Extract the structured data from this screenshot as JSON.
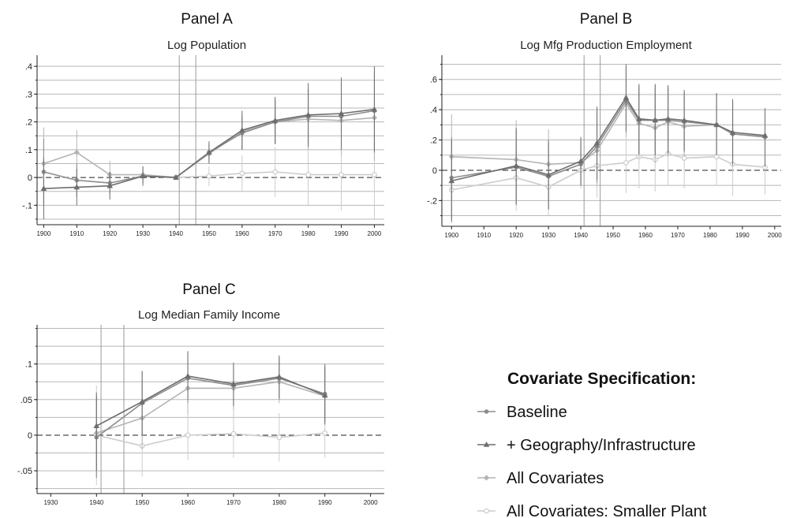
{
  "legend": {
    "title": "Covariate Specification:",
    "items": [
      {
        "label": "Baseline",
        "color": "#8c8c8c",
        "marker": "circle"
      },
      {
        "label": "+ Geography/Infrastructure",
        "color": "#6e6e6e",
        "marker": "triangle"
      },
      {
        "label": "All Covariates",
        "color": "#b4b4b4",
        "marker": "diamond"
      },
      {
        "label": "All Covariates: Smaller Plant",
        "color": "#cccccc",
        "marker": "plus"
      }
    ]
  },
  "chart_data": [
    {
      "type": "line",
      "title": "Panel A",
      "subtitle": "Log Population",
      "xlim": [
        1898,
        2003
      ],
      "ylim": [
        -0.17,
        0.44
      ],
      "xticks": [
        1900,
        1910,
        1920,
        1930,
        1940,
        1950,
        1960,
        1970,
        1980,
        1990,
        2000
      ],
      "yticks": [
        -0.1,
        0,
        0.1,
        0.2,
        0.3,
        0.4
      ],
      "ytick_labels": [
        "-.1",
        "0",
        ".1",
        ".2",
        ".3",
        ".4"
      ],
      "vlines": [
        1941,
        1946
      ],
      "series": [
        {
          "name": "Baseline",
          "points": [
            {
              "x": 1900,
              "y": 0.02,
              "lo": -0.1,
              "hi": 0.14
            },
            {
              "x": 1910,
              "y": -0.01,
              "lo": -0.07,
              "hi": 0.05
            },
            {
              "x": 1920,
              "y": -0.02,
              "lo": -0.06,
              "hi": 0.02
            },
            {
              "x": 1930,
              "y": 0.005,
              "lo": -0.02,
              "hi": 0.03
            },
            {
              "x": 1940,
              "y": 0,
              "lo": 0,
              "hi": 0
            },
            {
              "x": 1950,
              "y": 0.09,
              "lo": 0.06,
              "hi": 0.12
            },
            {
              "x": 1960,
              "y": 0.16,
              "lo": 0.1,
              "hi": 0.22
            },
            {
              "x": 1970,
              "y": 0.2,
              "lo": 0.12,
              "hi": 0.28
            },
            {
              "x": 1980,
              "y": 0.22,
              "lo": 0.12,
              "hi": 0.32
            },
            {
              "x": 1990,
              "y": 0.22,
              "lo": 0.11,
              "hi": 0.34
            },
            {
              "x": 2000,
              "y": 0.24,
              "lo": 0.1,
              "hi": 0.38
            }
          ]
        },
        {
          "name": "+ Geography/Infrastructure",
          "points": [
            {
              "x": 1900,
              "y": -0.04,
              "lo": -0.15,
              "hi": 0.07
            },
            {
              "x": 1910,
              "y": -0.035,
              "lo": -0.1,
              "hi": 0.03
            },
            {
              "x": 1920,
              "y": -0.03,
              "lo": -0.08,
              "hi": 0.02
            },
            {
              "x": 1930,
              "y": 0.005,
              "lo": -0.03,
              "hi": 0.04
            },
            {
              "x": 1940,
              "y": 0,
              "lo": 0,
              "hi": 0
            },
            {
              "x": 1950,
              "y": 0.09,
              "lo": 0.05,
              "hi": 0.13
            },
            {
              "x": 1960,
              "y": 0.17,
              "lo": 0.1,
              "hi": 0.24
            },
            {
              "x": 1970,
              "y": 0.205,
              "lo": 0.12,
              "hi": 0.29
            },
            {
              "x": 1980,
              "y": 0.225,
              "lo": 0.11,
              "hi": 0.34
            },
            {
              "x": 1990,
              "y": 0.23,
              "lo": 0.1,
              "hi": 0.36
            },
            {
              "x": 2000,
              "y": 0.245,
              "lo": 0.09,
              "hi": 0.4
            }
          ]
        },
        {
          "name": "All Covariates",
          "points": [
            {
              "x": 1900,
              "y": 0.05,
              "lo": -0.07,
              "hi": 0.18
            },
            {
              "x": 1910,
              "y": 0.09,
              "lo": 0.02,
              "hi": 0.17
            },
            {
              "x": 1920,
              "y": 0.01,
              "lo": -0.04,
              "hi": 0.06
            },
            {
              "x": 1930,
              "y": 0.01,
              "lo": -0.02,
              "hi": 0.04
            },
            {
              "x": 1940,
              "y": 0,
              "lo": 0,
              "hi": 0
            },
            {
              "x": 1950,
              "y": 0.085,
              "lo": 0.05,
              "hi": 0.12
            },
            {
              "x": 1960,
              "y": 0.165,
              "lo": 0.1,
              "hi": 0.23
            },
            {
              "x": 1970,
              "y": 0.2,
              "lo": 0.12,
              "hi": 0.28
            },
            {
              "x": 1980,
              "y": 0.21,
              "lo": 0.1,
              "hi": 0.32
            },
            {
              "x": 1990,
              "y": 0.205,
              "lo": 0.08,
              "hi": 0.33
            },
            {
              "x": 2000,
              "y": 0.215,
              "lo": 0.06,
              "hi": 0.37
            }
          ]
        },
        {
          "name": "All Covariates: Smaller Plant",
          "points": [
            {
              "x": 1940,
              "y": 0,
              "lo": 0,
              "hi": 0
            },
            {
              "x": 1950,
              "y": 0.005,
              "lo": -0.03,
              "hi": 0.04
            },
            {
              "x": 1960,
              "y": 0.015,
              "lo": -0.05,
              "hi": 0.08
            },
            {
              "x": 1970,
              "y": 0.02,
              "lo": -0.07,
              "hi": 0.11
            },
            {
              "x": 1980,
              "y": 0.01,
              "lo": -0.1,
              "hi": 0.12
            },
            {
              "x": 1990,
              "y": 0.01,
              "lo": -0.12,
              "hi": 0.14
            },
            {
              "x": 2000,
              "y": 0.01,
              "lo": -0.15,
              "hi": 0.16
            }
          ]
        }
      ]
    },
    {
      "type": "line",
      "title": "Panel B",
      "subtitle": "Log Mfg Production Employment",
      "xlim": [
        1897,
        2002
      ],
      "ylim": [
        -0.37,
        0.76
      ],
      "xticks": [
        1900,
        1910,
        1920,
        1930,
        1940,
        1950,
        1960,
        1970,
        1980,
        1990,
        2000
      ],
      "yticks": [
        -0.2,
        0,
        0.2,
        0.4,
        0.6
      ],
      "ytick_labels": [
        "-.2",
        "0",
        ".2",
        ".4",
        ".6"
      ],
      "vlines": [
        1941,
        1946
      ],
      "series": [
        {
          "name": "Baseline",
          "points": [
            {
              "x": 1900,
              "y": -0.05,
              "lo": -0.32,
              "hi": 0.22
            },
            {
              "x": 1920,
              "y": 0.02,
              "lo": -0.22,
              "hi": 0.27
            },
            {
              "x": 1930,
              "y": -0.04,
              "lo": -0.25,
              "hi": 0.18
            },
            {
              "x": 1940,
              "y": 0.04,
              "lo": -0.1,
              "hi": 0.18
            },
            {
              "x": 1945,
              "y": 0.16,
              "lo": -0.08,
              "hi": 0.4
            },
            {
              "x": 1954,
              "y": 0.46,
              "lo": 0.25,
              "hi": 0.68
            },
            {
              "x": 1958,
              "y": 0.33,
              "lo": 0.1,
              "hi": 0.56
            },
            {
              "x": 1963,
              "y": 0.33,
              "lo": 0.1,
              "hi": 0.56
            },
            {
              "x": 1967,
              "y": 0.33,
              "lo": 0.1,
              "hi": 0.56
            },
            {
              "x": 1972,
              "y": 0.32,
              "lo": 0.12,
              "hi": 0.52
            },
            {
              "x": 1982,
              "y": 0.3,
              "lo": 0.1,
              "hi": 0.5
            },
            {
              "x": 1987,
              "y": 0.24,
              "lo": 0.03,
              "hi": 0.45
            },
            {
              "x": 1997,
              "y": 0.22,
              "lo": 0.02,
              "hi": 0.4
            }
          ]
        },
        {
          "name": "+ Geography/Infrastructure",
          "points": [
            {
              "x": 1900,
              "y": -0.07,
              "lo": -0.34,
              "hi": 0.2
            },
            {
              "x": 1920,
              "y": 0.03,
              "lo": -0.23,
              "hi": 0.28
            },
            {
              "x": 1930,
              "y": -0.03,
              "lo": -0.26,
              "hi": 0.2
            },
            {
              "x": 1940,
              "y": 0.06,
              "lo": -0.1,
              "hi": 0.22
            },
            {
              "x": 1945,
              "y": 0.18,
              "lo": -0.06,
              "hi": 0.42
            },
            {
              "x": 1954,
              "y": 0.48,
              "lo": 0.26,
              "hi": 0.7
            },
            {
              "x": 1958,
              "y": 0.34,
              "lo": 0.11,
              "hi": 0.57
            },
            {
              "x": 1963,
              "y": 0.33,
              "lo": 0.1,
              "hi": 0.57
            },
            {
              "x": 1967,
              "y": 0.34,
              "lo": 0.11,
              "hi": 0.56
            },
            {
              "x": 1972,
              "y": 0.33,
              "lo": 0.13,
              "hi": 0.53
            },
            {
              "x": 1982,
              "y": 0.3,
              "lo": 0.1,
              "hi": 0.51
            },
            {
              "x": 1987,
              "y": 0.25,
              "lo": 0.04,
              "hi": 0.47
            },
            {
              "x": 1997,
              "y": 0.23,
              "lo": 0.03,
              "hi": 0.41
            }
          ]
        },
        {
          "name": "All Covariates",
          "points": [
            {
              "x": 1900,
              "y": 0.09,
              "lo": -0.19,
              "hi": 0.37
            },
            {
              "x": 1920,
              "y": 0.07,
              "lo": -0.2,
              "hi": 0.33
            },
            {
              "x": 1930,
              "y": 0.04,
              "lo": -0.2,
              "hi": 0.27
            },
            {
              "x": 1940,
              "y": 0.05,
              "lo": -0.1,
              "hi": 0.2
            },
            {
              "x": 1945,
              "y": 0.13,
              "lo": -0.1,
              "hi": 0.36
            },
            {
              "x": 1954,
              "y": 0.44,
              "lo": 0.22,
              "hi": 0.66
            },
            {
              "x": 1958,
              "y": 0.31,
              "lo": 0.08,
              "hi": 0.54
            },
            {
              "x": 1963,
              "y": 0.28,
              "lo": 0.05,
              "hi": 0.51
            },
            {
              "x": 1967,
              "y": 0.32,
              "lo": 0.09,
              "hi": 0.54
            },
            {
              "x": 1972,
              "y": 0.29,
              "lo": 0.09,
              "hi": 0.49
            },
            {
              "x": 1982,
              "y": 0.3,
              "lo": 0.1,
              "hi": 0.5
            },
            {
              "x": 1987,
              "y": 0.24,
              "lo": 0.03,
              "hi": 0.45
            },
            {
              "x": 1997,
              "y": 0.22,
              "lo": 0.02,
              "hi": 0.41
            }
          ]
        },
        {
          "name": "All Covariates: Smaller Plant",
          "points": [
            {
              "x": 1900,
              "y": -0.13,
              "lo": -0.35,
              "hi": 0.1
            },
            {
              "x": 1920,
              "y": -0.05,
              "lo": -0.27,
              "hi": 0.17
            },
            {
              "x": 1930,
              "y": -0.11,
              "lo": -0.3,
              "hi": 0.08
            },
            {
              "x": 1940,
              "y": 0,
              "lo": -0.12,
              "hi": 0.12
            },
            {
              "x": 1945,
              "y": 0.03,
              "lo": -0.18,
              "hi": 0.24
            },
            {
              "x": 1954,
              "y": 0.05,
              "lo": -0.15,
              "hi": 0.25
            },
            {
              "x": 1958,
              "y": 0.09,
              "lo": -0.12,
              "hi": 0.3
            },
            {
              "x": 1963,
              "y": 0.07,
              "lo": -0.14,
              "hi": 0.28
            },
            {
              "x": 1967,
              "y": 0.11,
              "lo": -0.1,
              "hi": 0.32
            },
            {
              "x": 1972,
              "y": 0.08,
              "lo": -0.12,
              "hi": 0.28
            },
            {
              "x": 1982,
              "y": 0.09,
              "lo": -0.1,
              "hi": 0.28
            },
            {
              "x": 1987,
              "y": 0.04,
              "lo": -0.17,
              "hi": 0.25
            },
            {
              "x": 1997,
              "y": 0.02,
              "lo": -0.16,
              "hi": 0.2
            }
          ]
        }
      ]
    },
    {
      "type": "line",
      "title": "Panel C",
      "subtitle": "Log Median Family Income",
      "xlim": [
        1927,
        2003
      ],
      "ylim": [
        -0.082,
        0.155
      ],
      "xticks": [
        1930,
        1940,
        1950,
        1960,
        1970,
        1980,
        1990,
        2000
      ],
      "yticks": [
        -0.05,
        0,
        0.05,
        0.1
      ],
      "ytick_labels": [
        "-.05",
        "0",
        ".05",
        ".1"
      ],
      "vlines": [
        1941,
        1946
      ],
      "series": [
        {
          "name": "Baseline",
          "points": [
            {
              "x": 1940,
              "y": -0.003,
              "lo": -0.06,
              "hi": 0.055
            },
            {
              "x": 1950,
              "y": 0.045,
              "lo": -0.0,
              "hi": 0.09
            },
            {
              "x": 1960,
              "y": 0.08,
              "lo": 0.045,
              "hi": 0.115
            },
            {
              "x": 1970,
              "y": 0.07,
              "lo": 0.04,
              "hi": 0.1
            },
            {
              "x": 1980,
              "y": 0.08,
              "lo": 0.05,
              "hi": 0.11
            },
            {
              "x": 1990,
              "y": 0.058,
              "lo": 0.02,
              "hi": 0.096
            }
          ]
        },
        {
          "name": "+ Geography/Infrastructure",
          "points": [
            {
              "x": 1940,
              "y": 0.013,
              "lo": -0.05,
              "hi": 0.06
            },
            {
              "x": 1950,
              "y": 0.047,
              "lo": 0.0,
              "hi": 0.09
            },
            {
              "x": 1960,
              "y": 0.083,
              "lo": 0.05,
              "hi": 0.118
            },
            {
              "x": 1970,
              "y": 0.072,
              "lo": 0.042,
              "hi": 0.102
            },
            {
              "x": 1980,
              "y": 0.082,
              "lo": 0.052,
              "hi": 0.112
            },
            {
              "x": 1990,
              "y": 0.056,
              "lo": 0.015,
              "hi": 0.1
            }
          ]
        },
        {
          "name": "All Covariates",
          "points": [
            {
              "x": 1940,
              "y": 0.003,
              "lo": -0.06,
              "hi": 0.05
            },
            {
              "x": 1950,
              "y": 0.024,
              "lo": -0.02,
              "hi": 0.07
            },
            {
              "x": 1960,
              "y": 0.066,
              "lo": 0.03,
              "hi": 0.1
            },
            {
              "x": 1970,
              "y": 0.066,
              "lo": 0.035,
              "hi": 0.096
            },
            {
              "x": 1980,
              "y": 0.075,
              "lo": 0.045,
              "hi": 0.105
            },
            {
              "x": 1990,
              "y": 0.055,
              "lo": 0.015,
              "hi": 0.095
            }
          ]
        },
        {
          "name": "All Covariates: Smaller Plant",
          "points": [
            {
              "x": 1940,
              "y": 0,
              "lo": -0.07,
              "hi": 0.07
            },
            {
              "x": 1950,
              "y": -0.015,
              "lo": -0.058,
              "hi": 0.028
            },
            {
              "x": 1960,
              "y": 0,
              "lo": -0.035,
              "hi": 0.035
            },
            {
              "x": 1970,
              "y": 0.002,
              "lo": -0.032,
              "hi": 0.036
            },
            {
              "x": 1980,
              "y": -0.003,
              "lo": -0.037,
              "hi": 0.031
            },
            {
              "x": 1990,
              "y": 0.003,
              "lo": -0.032,
              "hi": 0.04
            }
          ]
        }
      ]
    }
  ]
}
